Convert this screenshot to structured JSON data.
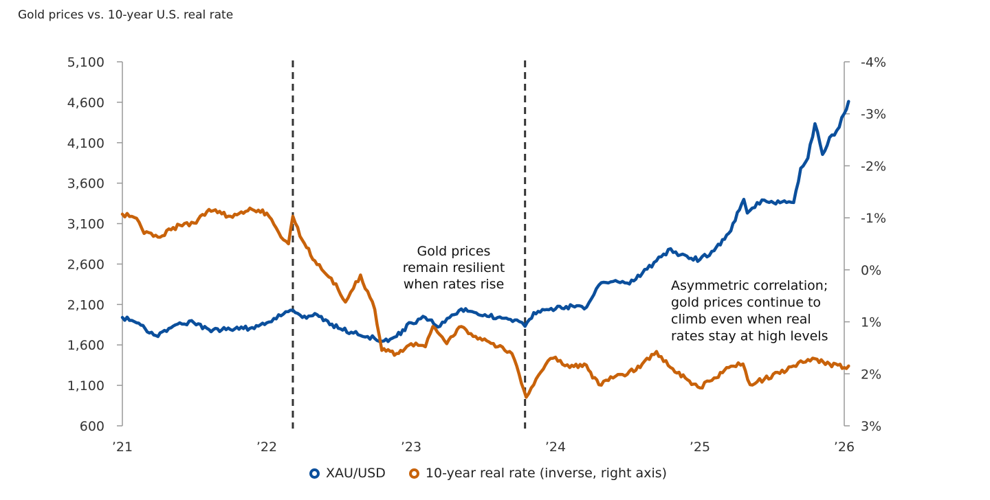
{
  "chart_data": {
    "type": "line",
    "title": "Gold prices vs. 10-year U.S. real rate",
    "left_axis": {
      "ylim": [
        600,
        5100
      ],
      "ticks": [
        "5,100",
        "4,600",
        "4,100",
        "3,600",
        "3,100",
        "2,600",
        "2,100",
        "1,600",
        "1,100",
        "600"
      ],
      "tick_values": [
        5100,
        4600,
        4100,
        3600,
        3100,
        2600,
        2100,
        1600,
        1100,
        600
      ]
    },
    "right_axis": {
      "ylim": [
        3,
        -4
      ],
      "inverted": true,
      "ticks": [
        "-4%",
        "-3%",
        "-2%",
        "-1%",
        "0%",
        "1%",
        "2%",
        "3%"
      ],
      "tick_values": [
        -4,
        -3,
        -2,
        -1,
        0,
        1,
        2,
        3
      ]
    },
    "x_axis": {
      "range": [
        "2021-01-01",
        "2026-01-12"
      ],
      "ticks": [
        "’21",
        "’22",
        "’23",
        "’24",
        "’25",
        "’26"
      ],
      "tick_dates": [
        "2021-01-01",
        "2022-01-01",
        "2023-01-01",
        "2024-01-01",
        "2025-01-01",
        "2026-01-01"
      ]
    },
    "grid": false,
    "legend_position": "bottom",
    "vertical_markers": [
      "2022-03-08",
      "2023-10-16"
    ],
    "annotations": [
      {
        "lines": [
          "Gold prices",
          "remain resilient",
          "when rates rise"
        ]
      },
      {
        "lines": [
          "Asymmetric correlation;",
          "gold prices continue to",
          "climb even when real",
          "rates stay at high levels"
        ]
      }
    ],
    "series": [
      {
        "name": "XAU/USD",
        "axis": "left",
        "color": "#0B4F9C",
        "x": [
          "2021-01-01",
          "2021-02-06",
          "2021-04-01",
          "2021-05-26",
          "2021-07-01",
          "2021-08-08",
          "2021-10-01",
          "2021-11-25",
          "2022-01-01",
          "2022-02-06",
          "2022-03-08",
          "2022-04-01",
          "2022-05-08",
          "2022-07-01",
          "2022-08-08",
          "2022-09-13",
          "2022-10-19",
          "2022-11-25",
          "2023-01-01",
          "2023-02-06",
          "2023-03-15",
          "2023-04-20",
          "2023-05-08",
          "2023-07-01",
          "2023-08-08",
          "2023-10-01",
          "2023-10-16",
          "2023-11-07",
          "2024-01-01",
          "2024-02-24",
          "2024-03-14",
          "2024-04-01",
          "2024-04-20",
          "2024-05-26",
          "2024-07-01",
          "2024-08-08",
          "2024-09-13",
          "2024-10-19",
          "2024-11-07",
          "2025-01-01",
          "2025-02-06",
          "2025-03-15",
          "2025-04-22",
          "2025-05-01",
          "2025-05-26",
          "2025-07-01",
          "2025-08-08",
          "2025-08-26",
          "2025-09-13",
          "2025-10-01",
          "2025-10-19",
          "2025-11-07",
          "2025-11-25",
          "2025-12-13",
          "2026-01-01",
          "2026-01-12"
        ],
        "values": [
          1940,
          1874,
          1704,
          1874,
          1874,
          1790,
          1790,
          1815,
          1874,
          1960,
          2030,
          1940,
          1975,
          1805,
          1745,
          1704,
          1645,
          1704,
          1874,
          1940,
          1830,
          1975,
          2045,
          1960,
          1940,
          1890,
          1830,
          2000,
          2045,
          2085,
          2045,
          2170,
          2340,
          2385,
          2365,
          2485,
          2640,
          2790,
          2705,
          2655,
          2765,
          2980,
          3400,
          3230,
          3360,
          3375,
          3360,
          3360,
          3785,
          3910,
          4335,
          3955,
          4165,
          4250,
          4460,
          4610
        ]
      },
      {
        "name": "10-year real rate (inverse, right axis)",
        "axis": "right",
        "color": "#C8620A",
        "x": [
          "2021-01-01",
          "2021-02-06",
          "2021-02-25",
          "2021-04-01",
          "2021-05-26",
          "2021-07-01",
          "2021-08-08",
          "2021-10-01",
          "2021-11-25",
          "2022-01-01",
          "2022-02-06",
          "2022-02-25",
          "2022-03-08",
          "2022-04-01",
          "2022-05-08",
          "2022-06-13",
          "2022-07-19",
          "2022-08-08",
          "2022-08-26",
          "2022-10-01",
          "2022-10-19",
          "2022-11-25",
          "2023-01-01",
          "2023-02-06",
          "2023-02-25",
          "2023-04-01",
          "2023-05-08",
          "2023-06-13",
          "2023-08-08",
          "2023-09-13",
          "2023-10-01",
          "2023-10-19",
          "2023-11-07",
          "2023-12-13",
          "2024-01-01",
          "2024-02-06",
          "2024-03-14",
          "2024-04-20",
          "2024-05-26",
          "2024-07-01",
          "2024-08-08",
          "2024-09-13",
          "2024-10-19",
          "2024-11-25",
          "2025-01-01",
          "2025-02-06",
          "2025-03-15",
          "2025-04-20",
          "2025-05-08",
          "2025-06-13",
          "2025-08-08",
          "2025-09-13",
          "2025-10-19",
          "2025-11-25",
          "2026-01-01",
          "2026-01-12"
        ],
        "values": [
          -1.07,
          -0.99,
          -0.7,
          -0.63,
          -0.86,
          -0.9,
          -1.16,
          -1.03,
          -1.16,
          -1.09,
          -0.63,
          -0.5,
          -1.03,
          -0.57,
          -0.1,
          0.16,
          0.62,
          0.36,
          0.1,
          0.76,
          1.55,
          1.61,
          1.42,
          1.48,
          1.09,
          1.42,
          1.09,
          1.28,
          1.48,
          1.61,
          2.01,
          2.45,
          2.21,
          1.75,
          1.68,
          1.88,
          1.81,
          2.21,
          2.08,
          2.01,
          1.81,
          1.57,
          1.88,
          2.08,
          2.27,
          2.08,
          1.88,
          1.81,
          2.21,
          2.1,
          1.94,
          1.75,
          1.71,
          1.81,
          1.88,
          1.85
        ]
      }
    ]
  }
}
